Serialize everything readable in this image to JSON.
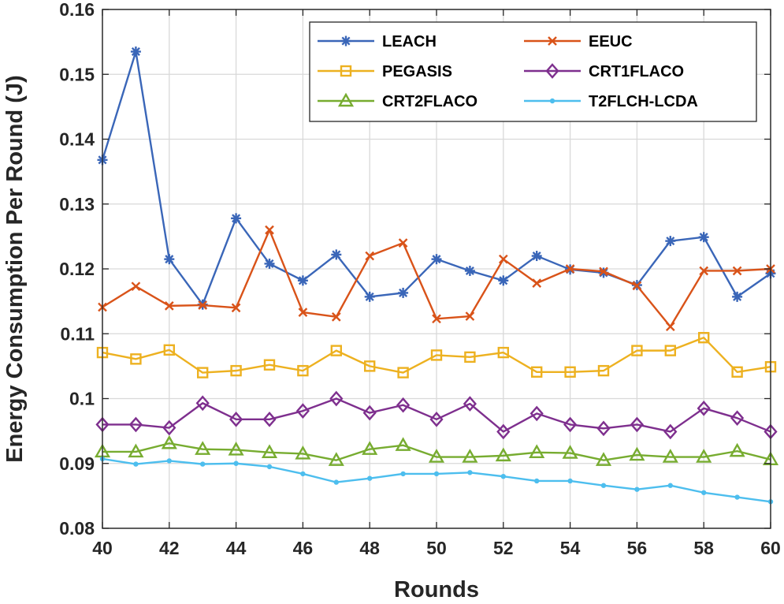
{
  "chart_data": {
    "type": "line",
    "xlabel": "Rounds",
    "ylabel": "Energy Consumption Per Round (J)",
    "xlim": [
      40,
      60
    ],
    "ylim": [
      0.08,
      0.16
    ],
    "xticks": [
      40,
      42,
      44,
      46,
      48,
      50,
      52,
      54,
      56,
      58,
      60
    ],
    "yticks": [
      "0.08",
      "0.09",
      "0.1",
      "0.11",
      "0.12",
      "0.13",
      "0.14",
      "0.15",
      "0.16"
    ],
    "grid": true,
    "legend_position": "top-right",
    "x": [
      40,
      41,
      42,
      43,
      44,
      45,
      46,
      47,
      48,
      49,
      50,
      51,
      52,
      53,
      54,
      55,
      56,
      57,
      58,
      59,
      60
    ],
    "series": [
      {
        "name": "LEACH",
        "color": "#3a66b8",
        "marker": "asterisk",
        "values": [
          0.1368,
          0.1535,
          0.1215,
          0.1145,
          0.1278,
          0.1208,
          0.1182,
          0.1222,
          0.1157,
          0.1163,
          0.1215,
          0.1197,
          0.1182,
          0.122,
          0.1199,
          0.1194,
          0.1175,
          0.1243,
          0.1249,
          0.1157,
          0.1193
        ]
      },
      {
        "name": "EEUC",
        "color": "#d95319",
        "marker": "x",
        "values": [
          0.1141,
          0.1173,
          0.1143,
          0.1144,
          0.114,
          0.126,
          0.1133,
          0.1126,
          0.122,
          0.124,
          0.1123,
          0.1127,
          0.1215,
          0.1178,
          0.12,
          0.1196,
          0.1174,
          0.1111,
          0.1197,
          0.1197,
          0.12
        ]
      },
      {
        "name": "PEGASIS",
        "color": "#edb120",
        "marker": "square",
        "values": [
          0.1071,
          0.1061,
          0.1075,
          0.104,
          0.1043,
          0.1052,
          0.1043,
          0.1074,
          0.105,
          0.104,
          0.1067,
          0.1064,
          0.1071,
          0.1041,
          0.1041,
          0.1043,
          0.1074,
          0.1074,
          0.1094,
          0.1041,
          0.1049
        ]
      },
      {
        "name": "CRT1FLACO",
        "color": "#7e2f8e",
        "marker": "diamond",
        "values": [
          0.096,
          0.096,
          0.0955,
          0.0993,
          0.0968,
          0.0968,
          0.0981,
          0.1,
          0.0978,
          0.099,
          0.0968,
          0.0992,
          0.0949,
          0.0977,
          0.096,
          0.0954,
          0.096,
          0.0949,
          0.0985,
          0.097,
          0.0949
        ]
      },
      {
        "name": "CRT2FLACO",
        "color": "#77ac30",
        "marker": "triangle",
        "values": [
          0.0918,
          0.0918,
          0.0931,
          0.0922,
          0.0921,
          0.0917,
          0.0915,
          0.0905,
          0.0922,
          0.0928,
          0.091,
          0.091,
          0.0912,
          0.0917,
          0.0916,
          0.0905,
          0.0913,
          0.091,
          0.091,
          0.0919,
          0.0906
        ]
      },
      {
        "name": "T2FLCH-LCDA",
        "color": "#4dbeee",
        "marker": "point",
        "values": [
          0.0907,
          0.0899,
          0.0904,
          0.0899,
          0.09,
          0.0895,
          0.0884,
          0.0871,
          0.0877,
          0.0884,
          0.0884,
          0.0886,
          0.088,
          0.0873,
          0.0873,
          0.0866,
          0.086,
          0.0866,
          0.0855,
          0.0848,
          0.0841
        ]
      }
    ]
  }
}
